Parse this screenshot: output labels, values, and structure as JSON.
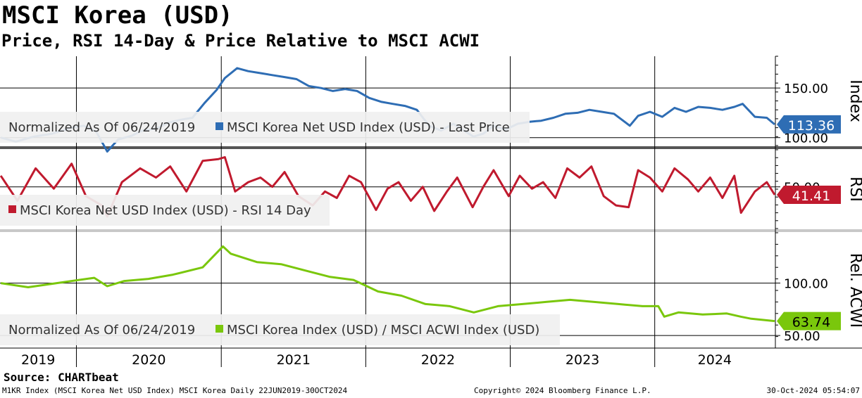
{
  "header": {
    "title": "MSCI Korea (USD)",
    "subtitle": "Price, RSI 14-Day & Price Relative to MSCI ACWI"
  },
  "footer": {
    "source": "Source: CHARTbeat",
    "ticker_info": "M1KR Index (MSCI Korea Net USD Index) MSCI Korea  Daily 22JUN2019-30OCT2024",
    "copyright": "Copyright© 2024 Bloomberg Finance L.P.",
    "timestamp": "30-Oct-2024 05:54:07"
  },
  "chart_data": [
    {
      "type": "line",
      "panel": "price",
      "axis_label": "Index",
      "legend_text": "Normalized As Of 06/24/2019",
      "series": [
        {
          "name": "MSCI Korea Net USD Index (USD) - Last Price",
          "color": "#2e6db4",
          "x": [
            "2019-06-24",
            "2019-08-01",
            "2019-09-15",
            "2019-11-01",
            "2019-12-20",
            "2020-01-20",
            "2020-02-20",
            "2020-03-19",
            "2020-04-15",
            "2020-05-20",
            "2020-06-15",
            "2020-07-20",
            "2020-08-20",
            "2020-09-20",
            "2020-10-20",
            "2020-11-20",
            "2020-12-20",
            "2021-01-10",
            "2021-02-10",
            "2021-03-10",
            "2021-04-10",
            "2021-05-10",
            "2021-06-10",
            "2021-07-10",
            "2021-08-10",
            "2021-09-10",
            "2021-10-10",
            "2021-11-10",
            "2021-12-10",
            "2022-01-10",
            "2022-02-10",
            "2022-03-10",
            "2022-04-10",
            "2022-05-10",
            "2022-06-10",
            "2022-07-10",
            "2022-08-10",
            "2022-09-30",
            "2022-10-25",
            "2022-11-20",
            "2022-12-20",
            "2023-01-20",
            "2023-02-20",
            "2023-03-20",
            "2023-04-20",
            "2023-05-20",
            "2023-06-20",
            "2023-07-20",
            "2023-08-20",
            "2023-09-20",
            "2023-10-30",
            "2023-11-20",
            "2023-12-20",
            "2024-01-20",
            "2024-02-20",
            "2024-03-20",
            "2024-04-20",
            "2024-05-20",
            "2024-06-20",
            "2024-07-20",
            "2024-08-10",
            "2024-09-10",
            "2024-10-10",
            "2024-10-30"
          ],
          "values": [
            100,
            96,
            101,
            104,
            110,
            112,
            106,
            86,
            98,
            102,
            107,
            109,
            115,
            118,
            120,
            135,
            148,
            160,
            170,
            167,
            165,
            163,
            161,
            159,
            152,
            150,
            147,
            149,
            147,
            140,
            136,
            134,
            132,
            128,
            112,
            107,
            114,
            101,
            104,
            112,
            108,
            114,
            116,
            117,
            120,
            124,
            125,
            128,
            126,
            124,
            112,
            122,
            126,
            121,
            130,
            126,
            131,
            130,
            128,
            131,
            134,
            121,
            120,
            113.36
          ]
        }
      ],
      "ylim": [
        92,
        182
      ],
      "ticks": [
        100,
        150
      ],
      "tick_labels": [
        "100.00",
        "150.00"
      ],
      "last_value_label": "113.36"
    },
    {
      "type": "line",
      "panel": "rsi",
      "axis_label": "RSI",
      "series": [
        {
          "name": "MSCI Korea Net USD Index (USD) - RSI 14 Day",
          "color": "#c01a2e",
          "x": [
            "2019-06-24",
            "2019-08-05",
            "2019-09-20",
            "2019-11-05",
            "2019-12-20",
            "2020-01-25",
            "2020-03-05",
            "2020-03-19",
            "2020-04-25",
            "2020-06-10",
            "2020-07-20",
            "2020-08-25",
            "2020-10-05",
            "2020-11-15",
            "2020-12-25",
            "2021-01-10",
            "2021-02-05",
            "2021-03-10",
            "2021-04-10",
            "2021-05-10",
            "2021-06-10",
            "2021-07-15",
            "2021-08-20",
            "2021-09-20",
            "2021-10-20",
            "2021-11-20",
            "2021-12-20",
            "2022-01-27",
            "2022-02-25",
            "2022-03-25",
            "2022-04-25",
            "2022-05-25",
            "2022-06-23",
            "2022-07-25",
            "2022-08-20",
            "2022-09-28",
            "2022-10-25",
            "2022-11-20",
            "2022-12-28",
            "2023-01-25",
            "2023-02-25",
            "2023-03-25",
            "2023-04-25",
            "2023-05-25",
            "2023-06-25",
            "2023-07-25",
            "2023-08-25",
            "2023-09-25",
            "2023-10-27",
            "2023-11-20",
            "2023-12-20",
            "2024-01-20",
            "2024-02-20",
            "2024-03-25",
            "2024-04-20",
            "2024-05-20",
            "2024-06-20",
            "2024-07-20",
            "2024-08-06",
            "2024-09-10",
            "2024-10-10",
            "2024-10-30"
          ],
          "values": [
            62,
            35,
            70,
            48,
            75,
            40,
            30,
            18,
            55,
            70,
            60,
            72,
            45,
            78,
            80,
            82,
            45,
            55,
            60,
            50,
            66,
            40,
            30,
            45,
            38,
            62,
            55,
            25,
            48,
            55,
            35,
            50,
            24,
            45,
            60,
            28,
            50,
            68,
            40,
            62,
            48,
            55,
            38,
            70,
            60,
            72,
            40,
            30,
            28,
            68,
            60,
            45,
            70,
            58,
            45,
            60,
            38,
            62,
            22,
            45,
            55,
            41.41
          ]
        }
      ],
      "ylim": [
        5,
        90
      ],
      "ticks": [
        50
      ],
      "tick_labels": [
        "50.00"
      ],
      "last_value_label": "41.41"
    },
    {
      "type": "line",
      "panel": "relative",
      "axis_label": "Rel. ACWI",
      "legend_text": "Normalized As Of 06/24/2019",
      "series": [
        {
          "name": "MSCI Korea Index (USD) / MSCI ACWI Index (USD)",
          "color": "#7ac70c",
          "x": [
            "2019-06-24",
            "2019-09-01",
            "2019-12-01",
            "2020-02-15",
            "2020-03-19",
            "2020-05-01",
            "2020-07-01",
            "2020-09-01",
            "2020-11-15",
            "2021-01-05",
            "2021-01-25",
            "2021-04-01",
            "2021-06-01",
            "2021-08-01",
            "2021-10-01",
            "2021-12-01",
            "2022-02-01",
            "2022-04-01",
            "2022-06-01",
            "2022-08-01",
            "2022-10-01",
            "2022-12-01",
            "2023-02-01",
            "2023-04-01",
            "2023-06-01",
            "2023-08-01",
            "2023-10-01",
            "2023-12-01",
            "2024-01-10",
            "2024-01-25",
            "2024-03-01",
            "2024-05-01",
            "2024-07-01",
            "2024-08-05",
            "2024-09-01",
            "2024-10-30"
          ],
          "values": [
            100,
            96,
            101,
            105,
            97,
            102,
            104,
            108,
            115,
            135,
            128,
            120,
            118,
            112,
            106,
            103,
            92,
            88,
            80,
            78,
            72,
            78,
            80,
            82,
            84,
            82,
            80,
            78,
            78,
            68,
            72,
            70,
            71,
            68,
            66,
            63.74
          ]
        }
      ],
      "ylim": [
        38,
        148
      ],
      "ticks": [
        50,
        100
      ],
      "tick_labels": [
        "50.00",
        "100.00"
      ],
      "last_value_label": "63.74"
    }
  ],
  "x_axis": {
    "years": [
      "2019",
      "2020",
      "2021",
      "2022",
      "2023",
      "2024"
    ],
    "start": "2019-06-22",
    "end": "2024-10-30"
  }
}
